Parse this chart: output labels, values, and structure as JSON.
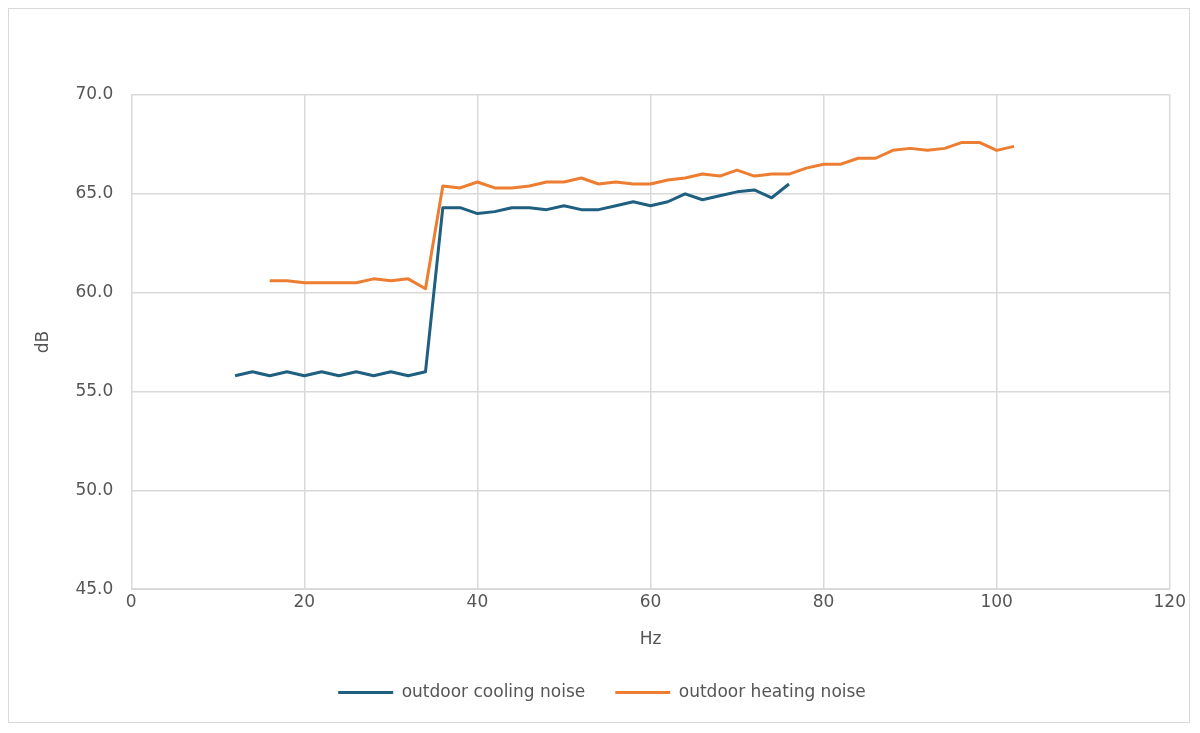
{
  "chart_data": {
    "type": "line",
    "xlabel": "Hz",
    "ylabel": "dB",
    "xlim": [
      0,
      120
    ],
    "xticks": [
      0,
      20,
      40,
      60,
      80,
      100,
      120
    ],
    "ylim": [
      45,
      70
    ],
    "yticks": [
      {
        "value": 45,
        "label": "45.0"
      },
      {
        "value": 50,
        "label": "50.0"
      },
      {
        "value": 55,
        "label": "55.0"
      },
      {
        "value": 60,
        "label": "60.0"
      },
      {
        "value": 65,
        "label": "65.0"
      },
      {
        "value": 70,
        "label": "70.0"
      }
    ],
    "grid": true,
    "legend": "bottom",
    "marker": "none",
    "line_style": "solid",
    "series": [
      {
        "name": "outdoor cooling noise",
        "color": "#1f5f7f",
        "x": [
          12,
          14,
          16,
          18,
          20,
          22,
          24,
          26,
          28,
          30,
          32,
          34,
          36,
          38,
          40,
          42,
          44,
          46,
          48,
          50,
          52,
          54,
          56,
          58,
          60,
          62,
          64,
          66,
          68,
          70,
          72,
          74,
          76
        ],
        "values": [
          55.8,
          56.0,
          55.8,
          56.0,
          55.8,
          56.0,
          55.8,
          56.0,
          55.8,
          56.0,
          55.8,
          56.0,
          64.3,
          64.3,
          64.0,
          64.1,
          64.3,
          64.3,
          64.2,
          64.4,
          64.2,
          64.2,
          64.4,
          64.6,
          64.4,
          64.6,
          65.0,
          64.7,
          64.9,
          65.1,
          65.2,
          64.8,
          65.5
        ]
      },
      {
        "name": "outdoor heating noise",
        "color": "#ed7d31",
        "x": [
          16,
          18,
          20,
          22,
          24,
          26,
          28,
          30,
          32,
          34,
          36,
          38,
          40,
          42,
          44,
          46,
          48,
          50,
          52,
          54,
          56,
          58,
          60,
          62,
          64,
          66,
          68,
          70,
          72,
          74,
          76,
          78,
          80,
          82,
          84,
          86,
          88,
          90,
          92,
          94,
          96,
          98,
          100,
          102
        ],
        "values": [
          60.6,
          60.6,
          60.5,
          60.5,
          60.5,
          60.5,
          60.7,
          60.6,
          60.7,
          60.2,
          65.4,
          65.3,
          65.6,
          65.3,
          65.3,
          65.4,
          65.6,
          65.6,
          65.8,
          65.5,
          65.6,
          65.5,
          65.5,
          65.7,
          65.8,
          66.0,
          65.9,
          66.2,
          65.9,
          66.0,
          66.0,
          66.3,
          66.5,
          66.5,
          66.8,
          66.8,
          67.2,
          67.3,
          67.2,
          67.3,
          67.6,
          67.6,
          67.2,
          67.4
        ]
      }
    ]
  }
}
